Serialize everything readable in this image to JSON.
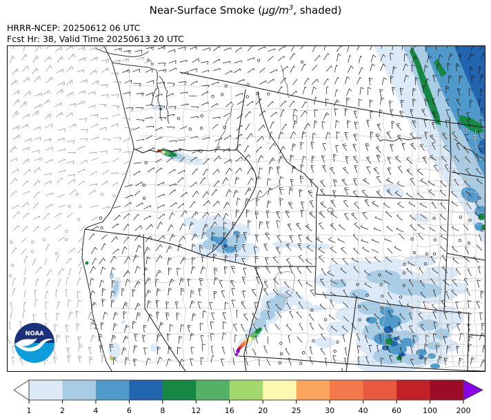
{
  "title": {
    "pre": "Near-Surface Smoke (",
    "unit": "μg/m",
    "exp": "3",
    "post": ", shaded)"
  },
  "header": {
    "line1": "HRRR-NCEP: 20250612 06 UTC",
    "line2": "Fcst Hr: 38, Valid Time 20250613 20 UTC"
  },
  "logo": {
    "label": "NOAA",
    "navy": "#1c2f7c",
    "cyan": "#0d9ddb"
  },
  "colorbar": {
    "ticks": [
      "1",
      "2",
      "4",
      "6",
      "8",
      "12",
      "16",
      "20",
      "25",
      "30",
      "40",
      "60",
      "100",
      "200"
    ],
    "colors": [
      "#dce9f6",
      "#a9cde5",
      "#4f9acb",
      "#2065ae",
      "#178843",
      "#54b266",
      "#a3d86d",
      "#fbf9b0",
      "#fca55d",
      "#f5784a",
      "#e8593f",
      "#c22127",
      "#9c0c26"
    ],
    "under": "#ffffff",
    "over": "#8b00e8",
    "outline": "#444444"
  },
  "map": {
    "frame": "#000000",
    "state_border": "#111111",
    "county_line": "#bdbdbd",
    "coast_line": "#333333",
    "water_line": "#555555",
    "barb_land": "#1c1c1c",
    "barb_ocean": "#979797"
  }
}
